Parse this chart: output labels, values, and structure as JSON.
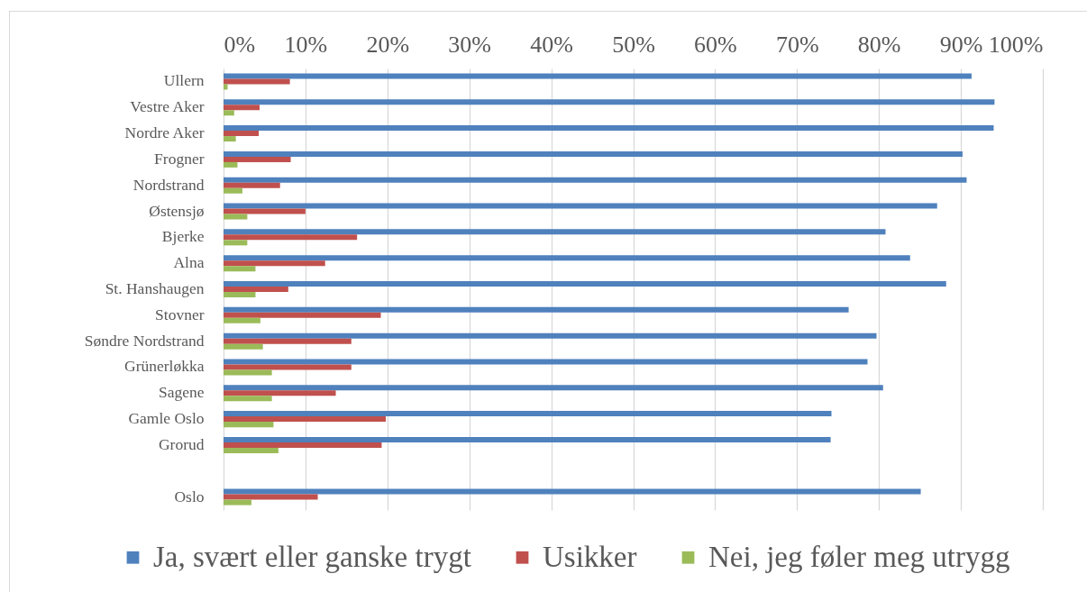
{
  "chart_data": {
    "type": "bar",
    "orientation": "horizontal",
    "categories": [
      "Ullern",
      "Vestre Aker",
      "Nordre Aker",
      "Frogner",
      "Nordstrand",
      "Østensjø",
      "Bjerke",
      "Alna",
      "St. Hanshaugen",
      "Stovner",
      "Søndre Nordstrand",
      "Grünerløkka",
      "Sagene",
      "Gamle Oslo",
      "Grorud",
      null,
      "Oslo"
    ],
    "series": [
      {
        "name": "Ja, svært eller ganske trygt",
        "color": "#4f81bd",
        "values": [
          91.3,
          94.1,
          94.0,
          90.2,
          90.7,
          87.1,
          80.8,
          83.8,
          88.2,
          76.3,
          79.7,
          78.6,
          80.5,
          74.2,
          74.1,
          null,
          85.1
        ]
      },
      {
        "name": "Usikker",
        "color": "#c0504d",
        "values": [
          8.1,
          4.4,
          4.3,
          8.2,
          6.9,
          10.0,
          16.3,
          12.4,
          7.9,
          19.2,
          15.6,
          15.6,
          13.7,
          19.8,
          19.3,
          null,
          11.5
        ]
      },
      {
        "name": "Nei, jeg føler meg utrygg",
        "color": "#9bbb59",
        "values": [
          0.5,
          1.3,
          1.5,
          1.7,
          2.3,
          2.9,
          2.9,
          3.9,
          3.9,
          4.5,
          4.8,
          5.9,
          5.9,
          6.1,
          6.7,
          null,
          3.4
        ]
      }
    ],
    "xlim": [
      0,
      100
    ],
    "xticks": [
      {
        "value": 0,
        "label": "0%"
      },
      {
        "value": 10,
        "label": "10%"
      },
      {
        "value": 20,
        "label": "20%"
      },
      {
        "value": 30,
        "label": "30%"
      },
      {
        "value": 40,
        "label": "40%"
      },
      {
        "value": 50,
        "label": "50%"
      },
      {
        "value": 60,
        "label": "60%"
      },
      {
        "value": 70,
        "label": "70%"
      },
      {
        "value": 80,
        "label": "80%"
      },
      {
        "value": 90,
        "label": "90%"
      },
      {
        "value": 100,
        "label": "100%"
      }
    ],
    "grid": "x",
    "legend": "bottom"
  }
}
